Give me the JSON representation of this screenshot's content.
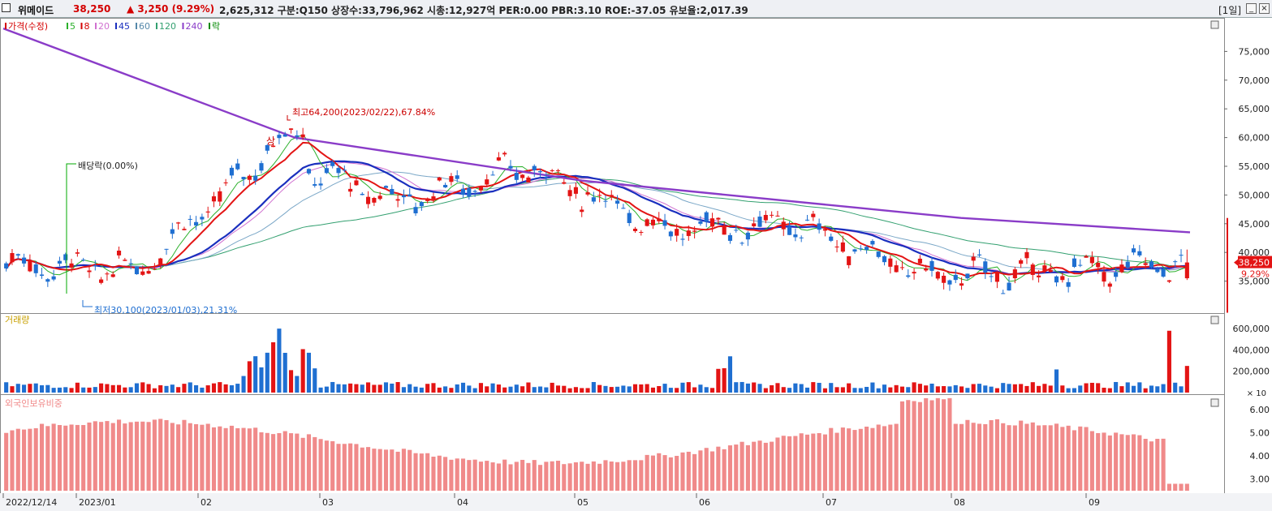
{
  "header": {
    "name": "위메이드",
    "price": "38,250",
    "change": "▲ 3,250",
    "change_pct": "(9.29%)",
    "stats": "2,625,312  구분:Q150  상장수:33,796,962  시총:12,927억  PER:0.00  PBR:3.10  ROE:-37.05  유보율:2,017.39",
    "period": "[1일]",
    "btn_min": "_",
    "btn_close": "×"
  },
  "colors": {
    "up": "#e31414",
    "down": "#1f6fd1",
    "ma5": "#2bb02b",
    "ma20": "#d070d0",
    "ma45": "#1a2fbe",
    "ma60": "#7aa7c7",
    "ma120": "#33a070",
    "ma240": "#8a3cc8",
    "foreign": "#f08a8a"
  },
  "chart_data": [
    {
      "type": "candlestick",
      "legend": [
        {
          "text": "가격(수정)",
          "color": "#d40000"
        },
        {
          "text": "5",
          "color": "#2bb02b"
        },
        {
          "text": "8",
          "color": "#d40000"
        },
        {
          "text": "20",
          "color": "#d070d0"
        },
        {
          "text": "45",
          "color": "#1a2fbe"
        },
        {
          "text": "60",
          "color": "#5588aa"
        },
        {
          "text": "120",
          "color": "#33a070"
        },
        {
          "text": "240",
          "color": "#8a3cc8"
        },
        {
          "text": "락",
          "color": "#008800"
        }
      ],
      "x_labels": [
        "2022/12/14",
        "2023/01",
        "02",
        "03",
        "04",
        "05",
        "06",
        "07",
        "08",
        "09"
      ],
      "y_ticks": [
        35000,
        40000,
        45000,
        50000,
        55000,
        60000,
        65000,
        70000,
        75000
      ],
      "y_tick_labels": [
        "35,000",
        "40,000",
        "45,000",
        "50,000",
        "55,000",
        "60,000",
        "65,000",
        "70,000",
        "75,000"
      ],
      "ylim": [
        30000,
        80000
      ],
      "annotations": {
        "high": "최고64,200(2023/02/22),67.84%",
        "low": "최저30,100(2023/01/03),21.31%",
        "dividend": "배당락(0.00%)",
        "limit_up": "상"
      },
      "last_price_label": "38,250",
      "last_pct_label": "9.29%",
      "monthly_close": [
        {
          "month": "2022/12",
          "close": 38000
        },
        {
          "month": "2023/01",
          "close": 37000
        },
        {
          "month": "2023/02",
          "close": 57000
        },
        {
          "month": "2023/03",
          "close": 49000
        },
        {
          "month": "2023/04",
          "close": 55000
        },
        {
          "month": "2023/05",
          "close": 44000
        },
        {
          "month": "2023/06",
          "close": 45000
        },
        {
          "month": "2023/07",
          "close": 36000
        },
        {
          "month": "2023/08",
          "close": 36500
        },
        {
          "month": "2023/09",
          "close": 38250
        }
      ],
      "ma240": [
        {
          "x": "2022/12/14",
          "y": 79000
        },
        {
          "x": "2023/02/22",
          "y": 60000
        },
        {
          "x": "2023/05/02",
          "y": 52500
        },
        {
          "x": "2023/08/01",
          "y": 46000
        },
        {
          "x": "2023/09/25",
          "y": 43500
        }
      ]
    },
    {
      "type": "bar",
      "title": "거래량",
      "y_ticks": [
        200000,
        400000,
        600000
      ],
      "y_tick_labels": [
        "200,000",
        "400,000",
        "600,000"
      ],
      "unit_label": "× 10",
      "last_value": 250000
    },
    {
      "type": "bar",
      "title": "외국인보유비중",
      "y_ticks": [
        3,
        4,
        5,
        6
      ],
      "y_tick_labels": [
        "3.00",
        "4.00",
        "5.00",
        "6.00"
      ],
      "ylim": [
        2.5,
        6.6
      ]
    }
  ]
}
